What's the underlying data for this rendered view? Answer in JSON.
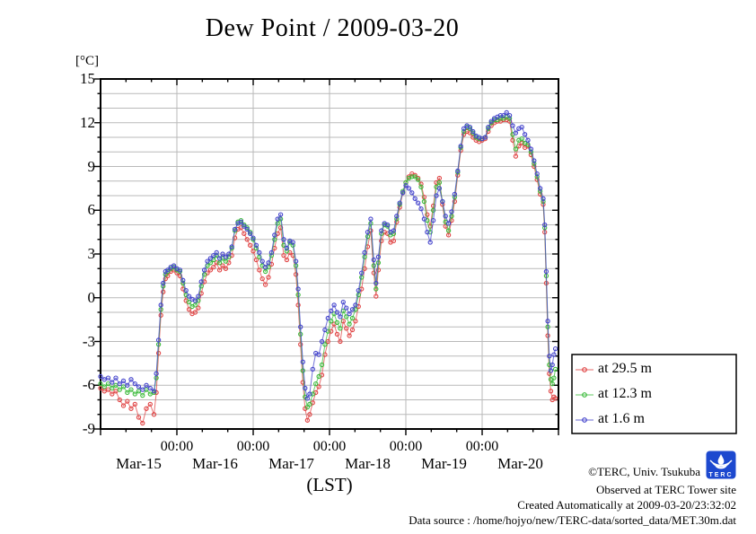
{
  "title": "Dew Point / 2009-03-20",
  "y_axis": {
    "unit_label": "[°C]"
  },
  "x_axis": {
    "hour_tick_label": "00:00",
    "day_labels": [
      "Mar-15",
      "Mar-16",
      "Mar-17",
      "Mar-18",
      "Mar-19",
      "Mar-20"
    ],
    "axis_label": "(LST)"
  },
  "legend": {
    "items": [
      {
        "label": "at 29.5 m",
        "color": "#e04545"
      },
      {
        "label": "at 12.3 m",
        "color": "#3cbb3c"
      },
      {
        "label": "at 1.6 m",
        "color": "#4444cc"
      }
    ]
  },
  "footer": {
    "copyright": "©TERC, Univ. Tsukuba",
    "observed": "Observed at TERC Tower site",
    "created": "Created Automatically at 2009-03-20/23:32:02",
    "datasource": "Data source : /home/hojyo/new/TERC-data/sorted_data/MET.30m.dat",
    "logo_text": "TERC"
  },
  "chart_data": {
    "type": "line",
    "title": "Dew Point / 2009-03-20",
    "ylabel": "[°C]",
    "xlabel": "(LST)",
    "ylim": [
      -9,
      15
    ],
    "xlim_days": [
      0,
      6
    ],
    "grid": "on",
    "legend_position": "outside-right-bottom",
    "yticks_major": [
      15,
      12,
      9,
      6,
      3,
      0,
      -3,
      -6,
      -9
    ],
    "ytick_minor_step": 1,
    "x_major_tick_days": [
      1,
      2,
      3,
      4,
      5
    ],
    "x_units": "days since 2009-03-15 00:00 LST",
    "x": [
      0.0,
      0.05,
      0.1,
      0.15,
      0.2,
      0.25,
      0.3,
      0.35,
      0.4,
      0.45,
      0.5,
      0.55,
      0.6,
      0.65,
      0.7,
      0.73,
      0.76,
      0.79,
      0.82,
      0.85,
      0.88,
      0.92,
      0.96,
      1.0,
      1.04,
      1.08,
      1.12,
      1.16,
      1.2,
      1.24,
      1.28,
      1.32,
      1.36,
      1.4,
      1.44,
      1.48,
      1.52,
      1.56,
      1.6,
      1.64,
      1.68,
      1.72,
      1.76,
      1.8,
      1.84,
      1.88,
      1.92,
      1.96,
      2.0,
      2.04,
      2.08,
      2.12,
      2.16,
      2.2,
      2.24,
      2.28,
      2.32,
      2.36,
      2.4,
      2.44,
      2.48,
      2.52,
      2.56,
      2.59,
      2.62,
      2.65,
      2.68,
      2.71,
      2.74,
      2.78,
      2.82,
      2.86,
      2.9,
      2.94,
      2.98,
      3.02,
      3.06,
      3.1,
      3.14,
      3.18,
      3.22,
      3.26,
      3.3,
      3.34,
      3.38,
      3.42,
      3.46,
      3.5,
      3.54,
      3.58,
      3.61,
      3.64,
      3.68,
      3.72,
      3.76,
      3.8,
      3.84,
      3.88,
      3.92,
      3.96,
      4.0,
      4.04,
      4.08,
      4.12,
      4.16,
      4.2,
      4.24,
      4.28,
      4.32,
      4.36,
      4.4,
      4.44,
      4.48,
      4.52,
      4.56,
      4.6,
      4.64,
      4.68,
      4.72,
      4.76,
      4.8,
      4.84,
      4.88,
      4.92,
      4.96,
      5.0,
      5.04,
      5.08,
      5.12,
      5.16,
      5.2,
      5.24,
      5.28,
      5.32,
      5.36,
      5.4,
      5.44,
      5.48,
      5.52,
      5.56,
      5.6,
      5.64,
      5.68,
      5.72,
      5.76,
      5.8,
      5.82,
      5.84,
      5.86,
      5.88,
      5.9,
      5.92,
      5.94,
      5.96
    ],
    "series": [
      {
        "name": "at 29.5 m",
        "color": "#e04545",
        "values": [
          -6.2,
          -6.4,
          -6.3,
          -6.6,
          -6.4,
          -7.0,
          -7.4,
          -7.1,
          -7.6,
          -7.3,
          -8.2,
          -8.6,
          -7.6,
          -7.3,
          -8.0,
          -6.5,
          -3.8,
          -1.2,
          0.4,
          1.3,
          1.5,
          1.8,
          1.9,
          1.7,
          1.5,
          0.6,
          -0.2,
          -0.8,
          -1.1,
          -1.0,
          -0.7,
          0.3,
          1.1,
          1.7,
          1.9,
          2.1,
          2.4,
          1.9,
          2.2,
          2.0,
          2.4,
          2.9,
          4.1,
          4.7,
          4.8,
          4.4,
          4.0,
          3.6,
          3.2,
          2.6,
          1.9,
          1.3,
          0.9,
          1.4,
          2.3,
          3.4,
          4.4,
          4.8,
          2.9,
          2.6,
          3.1,
          2.9,
          1.6,
          -0.5,
          -3.2,
          -5.8,
          -7.6,
          -8.4,
          -8.0,
          -7.2,
          -6.5,
          -6.1,
          -5.3,
          -3.9,
          -3.0,
          -2.3,
          -1.8,
          -2.5,
          -3.0,
          -1.6,
          -2.1,
          -2.6,
          -2.2,
          -1.6,
          -0.6,
          0.6,
          2.0,
          3.5,
          4.6,
          1.7,
          0.1,
          1.9,
          3.9,
          4.5,
          4.4,
          3.8,
          3.9,
          5.2,
          6.2,
          7.2,
          7.9,
          8.3,
          8.5,
          8.4,
          8.2,
          7.8,
          6.9,
          5.7,
          4.9,
          6.3,
          7.9,
          8.2,
          6.4,
          4.9,
          4.3,
          5.3,
          6.6,
          8.4,
          10.1,
          11.2,
          11.4,
          11.3,
          11.0,
          10.8,
          10.7,
          10.8,
          10.9,
          11.4,
          11.8,
          12.0,
          12.1,
          12.1,
          12.2,
          12.2,
          12.1,
          10.8,
          9.7,
          10.4,
          10.6,
          10.3,
          10.4,
          9.8,
          9.0,
          8.1,
          7.1,
          6.4,
          4.5,
          1.0,
          -2.6,
          -5.2,
          -6.4,
          -7.0,
          -6.8,
          -6.9
        ]
      },
      {
        "name": "at 12.3 m",
        "color": "#3cbb3c",
        "values": [
          -5.9,
          -6.1,
          -5.9,
          -6.2,
          -6.0,
          -6.3,
          -6.1,
          -6.5,
          -6.3,
          -6.6,
          -6.4,
          -6.7,
          -6.3,
          -6.6,
          -6.5,
          -5.5,
          -3.2,
          -0.8,
          0.8,
          1.6,
          1.8,
          2.0,
          2.1,
          1.9,
          1.8,
          1.0,
          0.2,
          -0.3,
          -0.6,
          -0.5,
          -0.2,
          0.8,
          1.6,
          2.2,
          2.4,
          2.6,
          2.9,
          2.4,
          2.7,
          2.5,
          2.8,
          3.4,
          4.6,
          5.2,
          5.3,
          5.0,
          4.8,
          4.5,
          4.0,
          3.4,
          2.8,
          2.2,
          1.8,
          2.1,
          2.9,
          4.0,
          5.1,
          5.4,
          3.6,
          3.2,
          3.8,
          3.6,
          2.2,
          0.2,
          -2.5,
          -5.0,
          -6.8,
          -7.5,
          -7.3,
          -6.6,
          -5.9,
          -5.4,
          -4.6,
          -3.2,
          -2.3,
          -1.6,
          -1.1,
          -1.7,
          -2.1,
          -0.9,
          -1.3,
          -1.8,
          -1.4,
          -0.8,
          0.2,
          1.4,
          2.8,
          4.2,
          5.1,
          2.2,
          0.6,
          2.4,
          4.4,
          5.0,
          4.9,
          4.3,
          4.4,
          5.4,
          6.4,
          7.3,
          7.9,
          8.2,
          8.3,
          8.3,
          8.1,
          7.6,
          6.6,
          5.3,
          4.5,
          6.0,
          7.6,
          7.9,
          6.6,
          5.2,
          4.6,
          5.6,
          6.9,
          8.6,
          10.3,
          11.4,
          11.7,
          11.6,
          11.3,
          11.0,
          10.9,
          10.9,
          11.0,
          11.6,
          12.0,
          12.2,
          12.2,
          12.3,
          12.3,
          12.4,
          12.3,
          11.2,
          10.2,
          10.8,
          10.9,
          10.6,
          10.5,
          10.0,
          9.2,
          8.3,
          7.3,
          6.6,
          4.8,
          1.5,
          -2.0,
          -4.6,
          -5.6,
          -5.9,
          -5.5,
          -4.9
        ]
      },
      {
        "name": "at 1.6 m",
        "color": "#4444cc",
        "values": [
          -5.4,
          -5.6,
          -5.5,
          -5.8,
          -5.5,
          -5.9,
          -5.7,
          -6.0,
          -5.6,
          -5.9,
          -6.1,
          -6.3,
          -6.0,
          -6.2,
          -6.4,
          -5.2,
          -2.9,
          -0.5,
          1.0,
          1.8,
          1.9,
          2.1,
          2.2,
          2.0,
          1.9,
          1.2,
          0.5,
          0.1,
          -0.1,
          -0.2,
          0.1,
          1.1,
          1.9,
          2.5,
          2.7,
          2.9,
          3.1,
          2.7,
          3.0,
          2.8,
          3.0,
          3.5,
          4.7,
          5.1,
          5.2,
          4.9,
          4.7,
          4.4,
          4.1,
          3.6,
          3.1,
          2.5,
          2.1,
          2.4,
          3.1,
          4.3,
          5.4,
          5.7,
          4.0,
          3.4,
          3.9,
          3.8,
          2.5,
          0.6,
          -2.0,
          -4.4,
          -6.2,
          -6.9,
          -6.6,
          -4.9,
          -3.8,
          -3.9,
          -3.0,
          -2.2,
          -1.4,
          -0.9,
          -0.5,
          -1.0,
          -1.3,
          -0.3,
          -0.7,
          -1.1,
          -0.8,
          -0.5,
          0.5,
          1.7,
          3.1,
          4.5,
          5.4,
          2.6,
          1.0,
          2.8,
          4.6,
          5.1,
          5.0,
          4.5,
          4.6,
          5.6,
          6.5,
          7.2,
          7.7,
          7.5,
          7.2,
          6.8,
          6.5,
          6.1,
          5.4,
          4.5,
          3.8,
          5.3,
          7.0,
          7.5,
          6.6,
          5.6,
          5.1,
          5.9,
          7.1,
          8.7,
          10.4,
          11.6,
          11.8,
          11.7,
          11.4,
          11.1,
          11.0,
          10.9,
          11.0,
          11.7,
          12.1,
          12.3,
          12.4,
          12.5,
          12.5,
          12.7,
          12.5,
          11.8,
          11.3,
          11.6,
          11.7,
          11.2,
          10.8,
          10.2,
          9.4,
          8.5,
          7.5,
          6.8,
          5.0,
          1.8,
          -1.6,
          -4.0,
          -5.0,
          -4.6,
          -3.9,
          -3.5
        ]
      }
    ]
  }
}
